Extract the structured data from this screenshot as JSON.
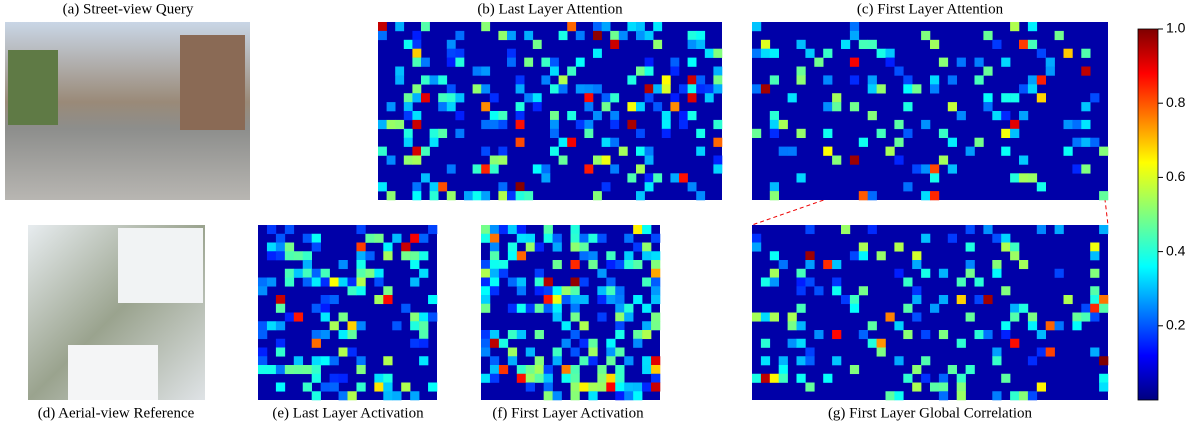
{
  "captions": {
    "a": "(a) Street-view Query",
    "b": "(b) Last Layer Attention",
    "c": "(c) First Layer Attention",
    "d": "(d) Aerial-view Reference",
    "e": "(e) Last Layer Activation",
    "f": "(f) First Layer Activation",
    "g": "(g) First Layer Global Correlation"
  },
  "colorbar": {
    "ylim": [
      0,
      1
    ],
    "yticks": [
      {
        "value": 1,
        "label": "1.0"
      },
      0.8,
      0.6,
      0.4,
      0.2
    ]
  }
}
